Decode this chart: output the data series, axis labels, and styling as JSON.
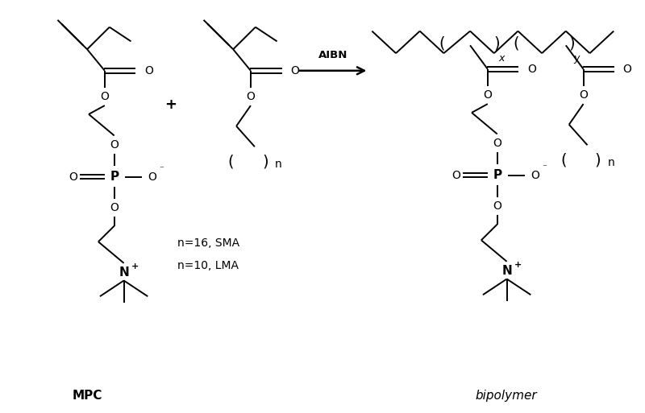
{
  "bg_color": "#ffffff",
  "line_color": "#000000",
  "figsize": [
    8.0,
    5.13
  ],
  "dpi": 100,
  "mpc_label": "MPC",
  "bipolymer_label": "bipolymer",
  "aibn_label": "AIBN",
  "n_label1": "n=16, SMA",
  "n_label2": "n=10, LMA",
  "x_label": "x",
  "y_label": "y",
  "n_label": "n"
}
